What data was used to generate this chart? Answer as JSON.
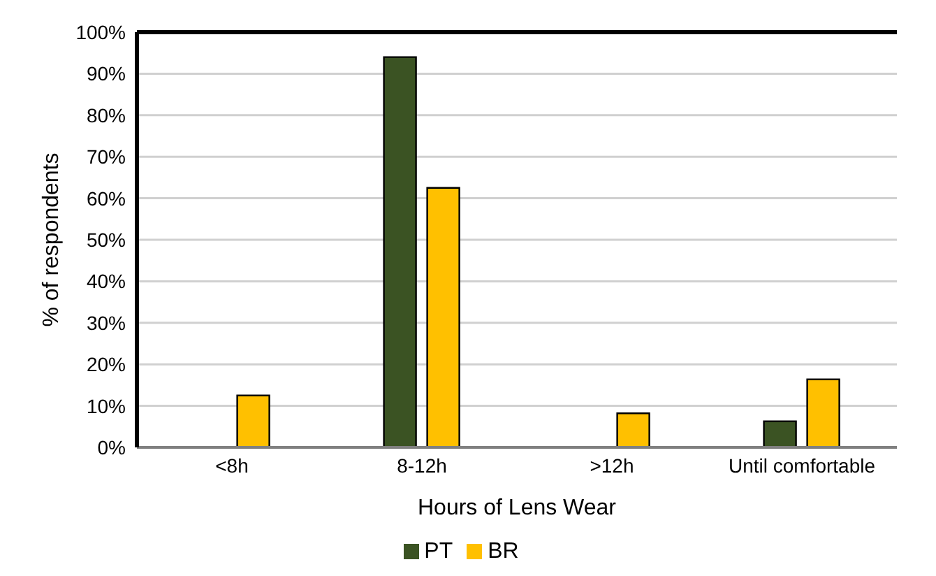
{
  "chart_data": {
    "type": "bar",
    "xlabel": "Hours of Lens Wear",
    "ylabel": "% of respondents",
    "categories": [
      "<8h",
      "8-12h",
      ">12h",
      "Until comfortable"
    ],
    "series": [
      {
        "name": "PT",
        "color": "#3b5323",
        "values": [
          0,
          94,
          0,
          6.3
        ]
      },
      {
        "name": "BR",
        "color": "#ffc000",
        "values": [
          12.5,
          62.5,
          8.2,
          16.4
        ]
      }
    ],
    "ylim": [
      0,
      100
    ],
    "yticks": [
      {
        "value": 0,
        "label": "0%"
      },
      {
        "value": 10,
        "label": "10%"
      },
      {
        "value": 20,
        "label": "20%"
      },
      {
        "value": 30,
        "label": "30%"
      },
      {
        "value": 40,
        "label": "40%"
      },
      {
        "value": 50,
        "label": "50%"
      },
      {
        "value": 60,
        "label": "60%"
      },
      {
        "value": 70,
        "label": "70%"
      },
      {
        "value": 80,
        "label": "80%"
      },
      {
        "value": 90,
        "label": "90%"
      },
      {
        "value": 100,
        "label": "100%"
      }
    ],
    "grid": "y",
    "legend": "bottom"
  }
}
